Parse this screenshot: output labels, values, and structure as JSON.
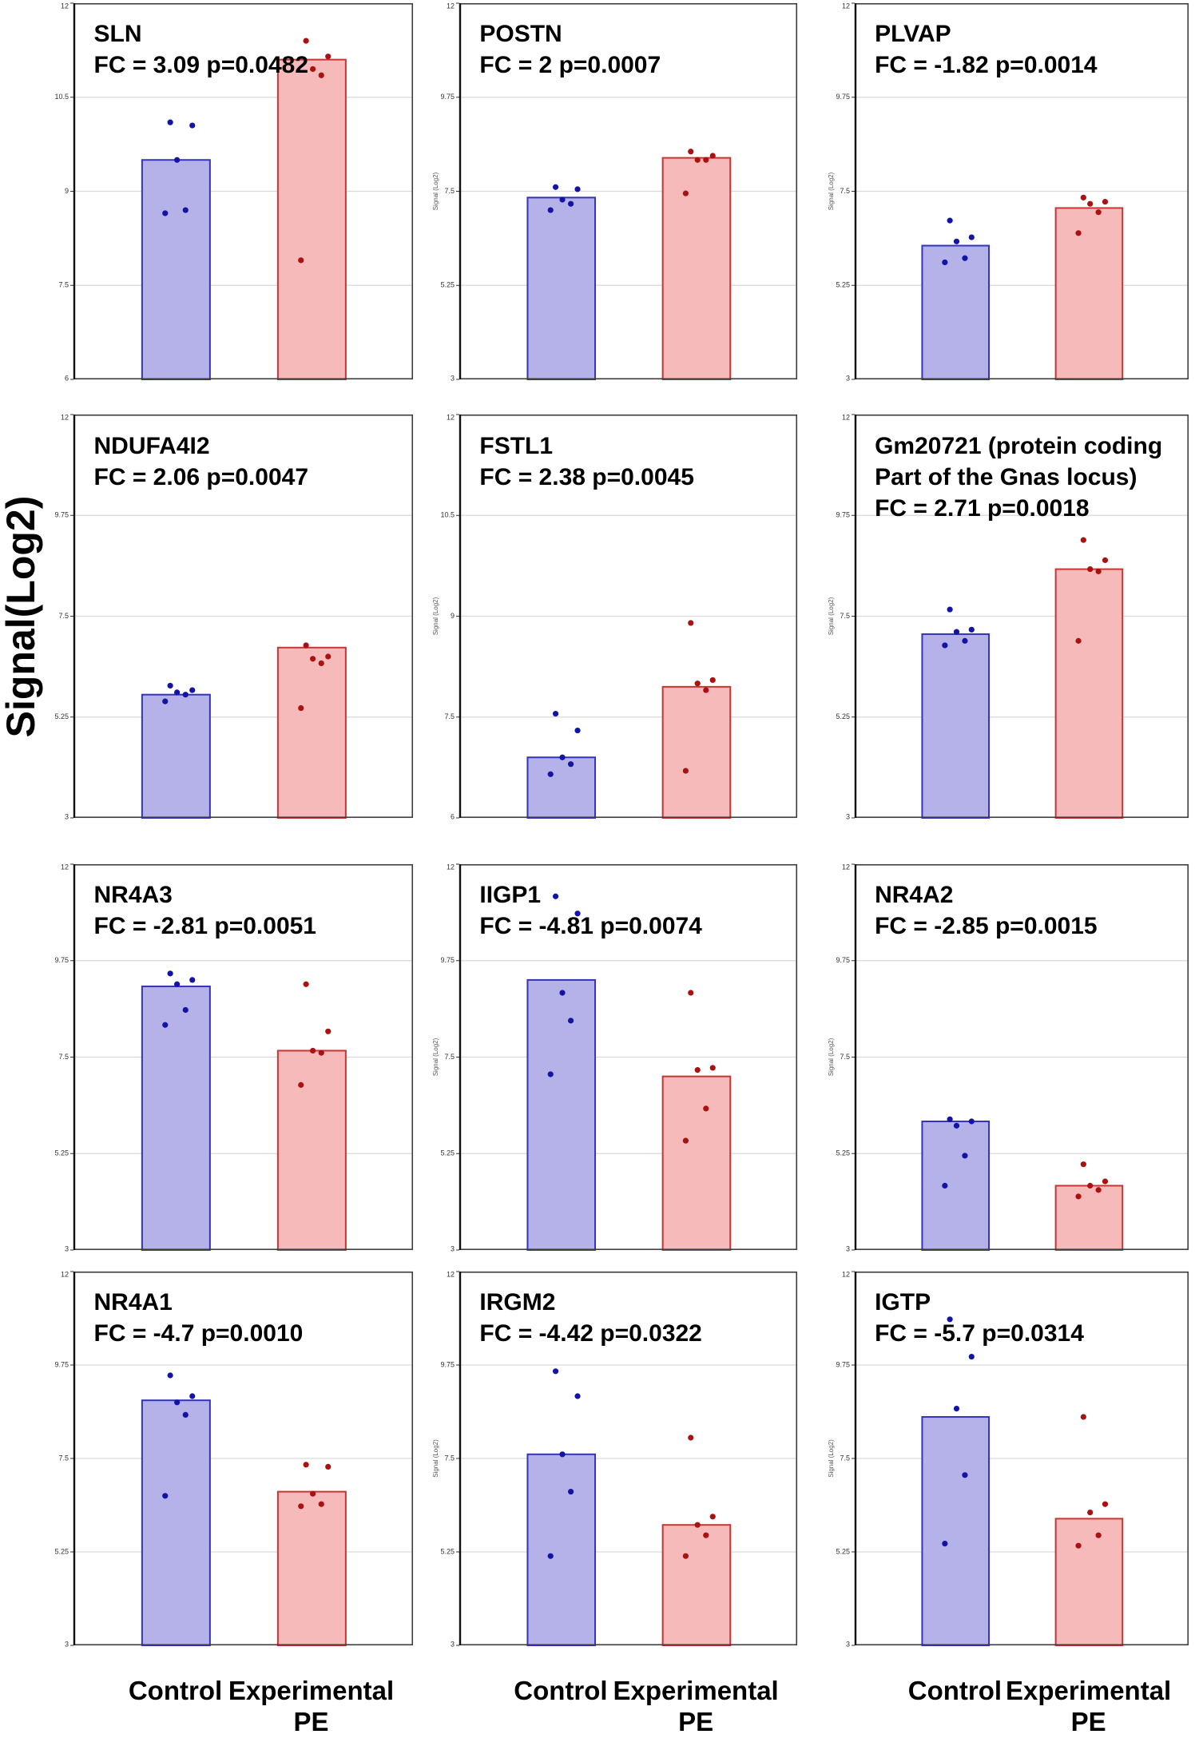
{
  "figure": {
    "ylabel_big": "Signal(Log2)",
    "axis_label_small": "Signal (Log2)",
    "bottom_labels": {
      "control": "Control",
      "experimental_line1": "Experimental",
      "experimental_line2": "PE"
    }
  },
  "colors": {
    "control_fill": "#b5b1e9",
    "control_stroke": "#3333bb",
    "control_dot": "#1313a6",
    "pe_fill": "#f6baba",
    "pe_stroke": "#cc3333",
    "pe_dot": "#aa1111",
    "grid": "#d9d9d9",
    "border": "#3d3d3d",
    "spine": "#111111",
    "tick_text": "#333333"
  },
  "chart_data": {
    "type": "bar",
    "categories": [
      "Control",
      "Experimental PE"
    ],
    "grid": true,
    "ylabel": "Signal(Log2)",
    "panels": [
      {
        "name": "SLN",
        "title_lines": [
          "SLN",
          "FC = 3.09 p=0.0482"
        ],
        "ylim": [
          6,
          12
        ],
        "yticks": [
          12,
          10.5,
          9,
          7.5,
          6
        ],
        "small_ylabel": false,
        "bars": {
          "control": 9.5,
          "pe": 11.1
        },
        "points": {
          "control": [
            10.1,
            10.05,
            9.5,
            8.7,
            8.65
          ],
          "pe": [
            11.4,
            11.15,
            10.95,
            10.85,
            7.9
          ]
        }
      },
      {
        "name": "POSTN",
        "title_lines": [
          "POSTN",
          "FC = 2 p=0.0007"
        ],
        "ylim": [
          3,
          12
        ],
        "yticks": [
          12,
          9.75,
          7.5,
          5.25,
          3
        ],
        "small_ylabel": true,
        "bars": {
          "control": 7.35,
          "pe": 8.3
        },
        "points": {
          "control": [
            7.6,
            7.55,
            7.3,
            7.2,
            7.05
          ],
          "pe": [
            8.45,
            8.35,
            8.25,
            8.25,
            7.45
          ]
        }
      },
      {
        "name": "PLVAP",
        "title_lines": [
          "PLVAP",
          "FC = -1.82 p=0.0014"
        ],
        "ylim": [
          3,
          12
        ],
        "yticks": [
          12,
          9.75,
          7.5,
          5.25,
          3
        ],
        "small_ylabel": true,
        "bars": {
          "control": 6.2,
          "pe": 7.1
        },
        "points": {
          "control": [
            6.8,
            6.4,
            6.3,
            5.9,
            5.8
          ],
          "pe": [
            7.35,
            7.25,
            7.2,
            7.0,
            6.5
          ]
        }
      },
      {
        "name": "NDUFA4I2",
        "title_lines": [
          "NDUFA4I2",
          "FC = 2.06 p=0.0047"
        ],
        "ylim": [
          3,
          12
        ],
        "yticks": [
          12,
          9.75,
          7.5,
          5.25,
          3
        ],
        "small_ylabel": false,
        "bars": {
          "control": 5.75,
          "pe": 6.8
        },
        "points": {
          "control": [
            5.95,
            5.85,
            5.8,
            5.75,
            5.6
          ],
          "pe": [
            6.85,
            6.6,
            6.55,
            6.45,
            5.45
          ]
        }
      },
      {
        "name": "FSTL1",
        "title_lines": [
          "FSTL1",
          "FC = 2.38 p=0.0045"
        ],
        "ylim": [
          6,
          12
        ],
        "yticks": [
          12,
          10.5,
          9,
          7.5,
          6
        ],
        "small_ylabel": true,
        "bars": {
          "control": 6.9,
          "pe": 7.95
        },
        "points": {
          "control": [
            7.55,
            7.3,
            6.9,
            6.8,
            6.65
          ],
          "pe": [
            8.9,
            8.05,
            8.0,
            7.9,
            6.7
          ]
        }
      },
      {
        "name": "Gm20721",
        "title_lines": [
          "Gm20721 (protein coding",
          "Part of the Gnas locus)",
          "FC = 2.71 p=0.0018"
        ],
        "ylim": [
          3,
          12
        ],
        "yticks": [
          12,
          9.75,
          7.5,
          5.25,
          3
        ],
        "small_ylabel": true,
        "bars": {
          "control": 7.1,
          "pe": 8.55
        },
        "points": {
          "control": [
            7.65,
            7.2,
            7.15,
            6.95,
            6.85
          ],
          "pe": [
            9.2,
            8.75,
            8.55,
            8.5,
            6.95
          ]
        }
      },
      {
        "name": "NR4A3",
        "title_lines": [
          "NR4A3",
          "FC = -2.81 p=0.0051"
        ],
        "ylim": [
          3,
          12
        ],
        "yticks": [
          12,
          9.75,
          7.5,
          5.25,
          3
        ],
        "small_ylabel": false,
        "bars": {
          "control": 9.15,
          "pe": 7.65
        },
        "points": {
          "control": [
            9.45,
            9.3,
            9.2,
            8.6,
            8.25
          ],
          "pe": [
            9.2,
            8.1,
            7.65,
            7.6,
            6.85
          ]
        }
      },
      {
        "name": "IIGP1",
        "title_lines": [
          "IIGP1",
          "FC = -4.81 p=0.0074"
        ],
        "ylim": [
          3,
          12
        ],
        "yticks": [
          12,
          9.75,
          7.5,
          5.25,
          3
        ],
        "small_ylabel": true,
        "bars": {
          "control": 9.3,
          "pe": 7.05
        },
        "points": {
          "control": [
            11.25,
            10.85,
            9.0,
            8.35,
            7.1
          ],
          "pe": [
            9.0,
            7.25,
            7.2,
            6.3,
            5.55
          ]
        }
      },
      {
        "name": "NR4A2",
        "title_lines": [
          "NR4A2",
          "FC = -2.85 p=0.0015"
        ],
        "ylim": [
          3,
          12
        ],
        "yticks": [
          12,
          9.75,
          7.5,
          5.25,
          3
        ],
        "small_ylabel": true,
        "bars": {
          "control": 6.0,
          "pe": 4.5
        },
        "points": {
          "control": [
            6.05,
            6.0,
            5.9,
            5.2,
            4.5
          ],
          "pe": [
            5.0,
            4.6,
            4.5,
            4.4,
            4.25
          ]
        }
      },
      {
        "name": "NR4A1",
        "title_lines": [
          "NR4A1",
          "FC = -4.7 p=0.0010"
        ],
        "ylim": [
          3,
          12
        ],
        "yticks": [
          12,
          9.75,
          7.5,
          5.25,
          3
        ],
        "small_ylabel": false,
        "bars": {
          "control": 8.9,
          "pe": 6.7
        },
        "points": {
          "control": [
            9.5,
            9.0,
            8.85,
            8.55,
            6.6
          ],
          "pe": [
            7.35,
            7.3,
            6.65,
            6.4,
            6.35
          ]
        }
      },
      {
        "name": "IRGM2",
        "title_lines": [
          "IRGM2",
          "FC = -4.42 p=0.0322"
        ],
        "ylim": [
          3,
          12
        ],
        "yticks": [
          12,
          9.75,
          7.5,
          5.25,
          3
        ],
        "small_ylabel": true,
        "bars": {
          "control": 7.6,
          "pe": 5.9
        },
        "points": {
          "control": [
            9.6,
            9.0,
            7.6,
            6.7,
            5.15
          ],
          "pe": [
            8.0,
            6.1,
            5.9,
            5.65,
            5.15
          ]
        }
      },
      {
        "name": "IGTP",
        "title_lines": [
          "IGTP",
          "FC = -5.7 p=0.0314"
        ],
        "ylim": [
          3,
          12
        ],
        "yticks": [
          12,
          9.75,
          7.5,
          5.25,
          3
        ],
        "small_ylabel": true,
        "bars": {
          "control": 8.5,
          "pe": 6.05
        },
        "points": {
          "control": [
            10.85,
            9.95,
            8.7,
            7.1,
            5.45
          ],
          "pe": [
            8.5,
            6.4,
            6.2,
            5.65,
            5.4
          ]
        }
      }
    ]
  }
}
